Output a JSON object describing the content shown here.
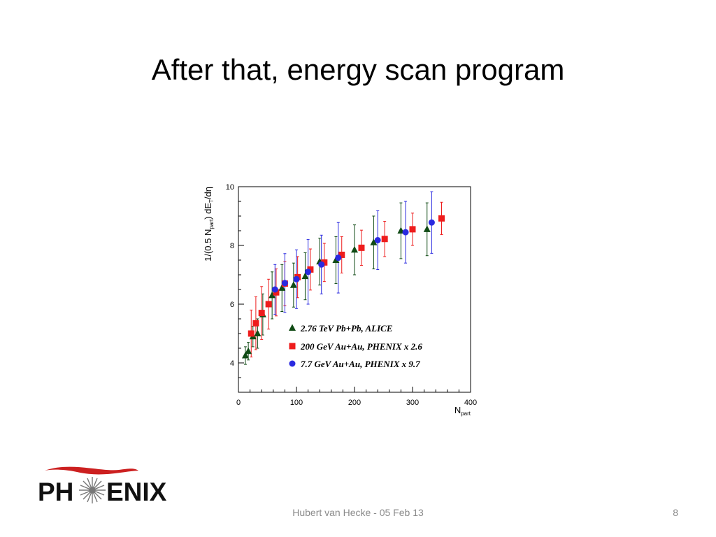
{
  "slide": {
    "title": "After that, energy scan program",
    "footer": "Hubert van Hecke - 05 Feb 13",
    "page_number": "8"
  },
  "logo": {
    "text_left": "PH",
    "text_right": "ENIX",
    "accent_color": "#cc2020",
    "icon": "starburst-icon"
  },
  "chart_data": {
    "type": "scatter",
    "title": "",
    "xlabel": {
      "main": "N",
      "sub": "part"
    },
    "ylabel": {
      "prefix": "1/(0.5 N",
      "sub1": "part",
      "mid": ") dE",
      "sub2": "T",
      "suffix": "/dη"
    },
    "xlim": [
      0,
      400
    ],
    "ylim": [
      3,
      10
    ],
    "x_ticks": [
      0,
      100,
      200,
      300,
      400
    ],
    "y_ticks": [
      4,
      6,
      8,
      10
    ],
    "grid": false,
    "legend_position": "bottom-right",
    "series": [
      {
        "name": "2.76 TeV Pb+Pb, ALICE",
        "marker": "triangle",
        "color": "#0f4a14",
        "points": [
          {
            "x": 12,
            "y": 4.25,
            "err": 0.3
          },
          {
            "x": 17,
            "y": 4.4,
            "err": 0.3
          },
          {
            "x": 25,
            "y": 4.9,
            "err": 0.35
          },
          {
            "x": 33,
            "y": 5.0,
            "err": 0.5
          },
          {
            "x": 42,
            "y": 5.65,
            "err": 0.7
          },
          {
            "x": 58,
            "y": 6.3,
            "err": 0.8
          },
          {
            "x": 75,
            "y": 6.55,
            "err": 0.8
          },
          {
            "x": 95,
            "y": 6.65,
            "err": 0.75
          },
          {
            "x": 115,
            "y": 6.95,
            "err": 0.8
          },
          {
            "x": 140,
            "y": 7.45,
            "err": 0.8
          },
          {
            "x": 168,
            "y": 7.5,
            "err": 0.8
          },
          {
            "x": 200,
            "y": 7.85,
            "err": 0.85
          },
          {
            "x": 233,
            "y": 8.1,
            "err": 0.9
          },
          {
            "x": 280,
            "y": 8.5,
            "err": 0.95
          },
          {
            "x": 325,
            "y": 8.55,
            "err": 0.9
          }
        ]
      },
      {
        "name": "200 GeV Au+Au, PHENIX x 2.6",
        "marker": "square",
        "color": "#ee1c1c",
        "points": [
          {
            "x": 22,
            "y": 5.0,
            "err": 0.8
          },
          {
            "x": 30,
            "y": 5.35,
            "err": 0.9
          },
          {
            "x": 40,
            "y": 5.7,
            "err": 0.9
          },
          {
            "x": 52,
            "y": 6.0,
            "err": 0.85
          },
          {
            "x": 65,
            "y": 6.4,
            "err": 0.8
          },
          {
            "x": 80,
            "y": 6.7,
            "err": 0.75
          },
          {
            "x": 102,
            "y": 6.92,
            "err": 0.7
          },
          {
            "x": 124,
            "y": 7.18,
            "err": 0.7
          },
          {
            "x": 148,
            "y": 7.42,
            "err": 0.65
          },
          {
            "x": 178,
            "y": 7.68,
            "err": 0.62
          },
          {
            "x": 212,
            "y": 7.92,
            "err": 0.6
          },
          {
            "x": 252,
            "y": 8.22,
            "err": 0.6
          },
          {
            "x": 300,
            "y": 8.55,
            "err": 0.55
          },
          {
            "x": 350,
            "y": 8.92,
            "err": 0.55
          }
        ]
      },
      {
        "name": "7.7 GeV Au+Au, PHENIX x 9.7",
        "marker": "circle",
        "color": "#2a2ae0",
        "points": [
          {
            "x": 63,
            "y": 6.5,
            "err": 0.85
          },
          {
            "x": 80,
            "y": 6.72,
            "err": 1.0
          },
          {
            "x": 100,
            "y": 6.85,
            "err": 1.0
          },
          {
            "x": 120,
            "y": 7.1,
            "err": 1.1
          },
          {
            "x": 143,
            "y": 7.35,
            "err": 1.0
          },
          {
            "x": 172,
            "y": 7.58,
            "err": 1.2
          },
          {
            "x": 240,
            "y": 8.18,
            "err": 1.0
          },
          {
            "x": 288,
            "y": 8.45,
            "err": 1.05
          },
          {
            "x": 333,
            "y": 8.78,
            "err": 1.05
          }
        ]
      }
    ]
  }
}
